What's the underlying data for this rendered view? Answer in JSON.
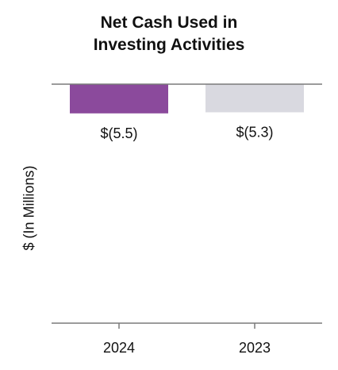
{
  "chart_data": {
    "type": "bar",
    "title_lines": [
      "Net Cash Used in",
      "Investing Activities"
    ],
    "ylabel": "$ (In Millions)",
    "xlabel": "",
    "categories": [
      "2024",
      "2023"
    ],
    "values": [
      -5.5,
      -5.3
    ],
    "data_labels": [
      "$(5.5)",
      "$(5.3)"
    ],
    "bar_colors": [
      "#8b4a9c",
      "#d9d9e0"
    ],
    "ylim": [
      -45,
      0
    ],
    "grid": false,
    "legend": "none"
  }
}
